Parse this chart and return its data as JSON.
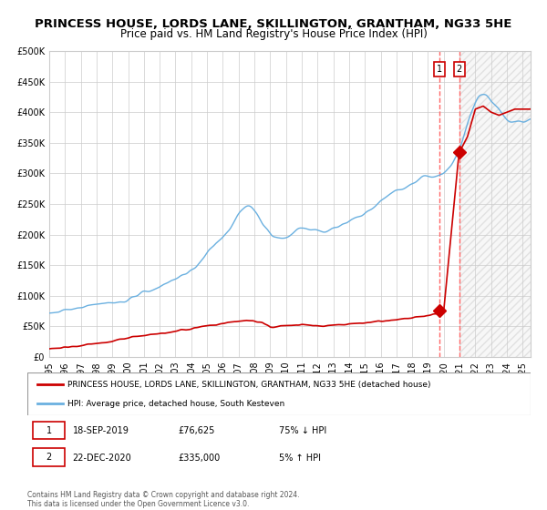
{
  "title": "PRINCESS HOUSE, LORDS LANE, SKILLINGTON, GRANTHAM, NG33 5HE",
  "subtitle": "Price paid vs. HM Land Registry's House Price Index (HPI)",
  "xlabel": "",
  "ylabel": "",
  "ylim": [
    0,
    500000
  ],
  "yticks": [
    0,
    50000,
    100000,
    150000,
    200000,
    250000,
    300000,
    350000,
    400000,
    450000,
    500000
  ],
  "ytick_labels": [
    "£0",
    "£50K",
    "£100K",
    "£150K",
    "£200K",
    "£250K",
    "£300K",
    "£350K",
    "£400K",
    "£450K",
    "£500K"
  ],
  "xlim_start": 1995.0,
  "xlim_end": 2025.5,
  "xticks": [
    1995,
    1996,
    1997,
    1998,
    1999,
    2000,
    2001,
    2002,
    2003,
    2004,
    2005,
    2006,
    2007,
    2008,
    2009,
    2010,
    2011,
    2012,
    2013,
    2014,
    2015,
    2016,
    2017,
    2018,
    2019,
    2020,
    2021,
    2022,
    2023,
    2024,
    2025
  ],
  "hpi_color": "#6ab0e0",
  "price_color": "#cc0000",
  "dashed_color": "#ff6666",
  "marker_color": "#cc0000",
  "background_color": "#ffffff",
  "grid_color": "#cccccc",
  "hatch_color": "#dddddd",
  "title_fontsize": 9.5,
  "subtitle_fontsize": 8.5,
  "tick_fontsize": 7,
  "legend_fontsize": 7.5,
  "transaction1_date": 2019.72,
  "transaction2_date": 2020.97,
  "transaction1_price": 76625,
  "transaction2_price": 335000,
  "legend_red_label": "PRINCESS HOUSE, LORDS LANE, SKILLINGTON, GRANTHAM, NG33 5HE (detached house)",
  "legend_blue_label": "HPI: Average price, detached house, South Kesteven",
  "table_row1": [
    "1",
    "18-SEP-2019",
    "£76,625",
    "75% ↓ HPI"
  ],
  "table_row2": [
    "2",
    "22-DEC-2020",
    "£335,000",
    "5% ↑ HPI"
  ],
  "footnote": "Contains HM Land Registry data © Crown copyright and database right 2024.\nThis data is licensed under the Open Government Licence v3.0."
}
